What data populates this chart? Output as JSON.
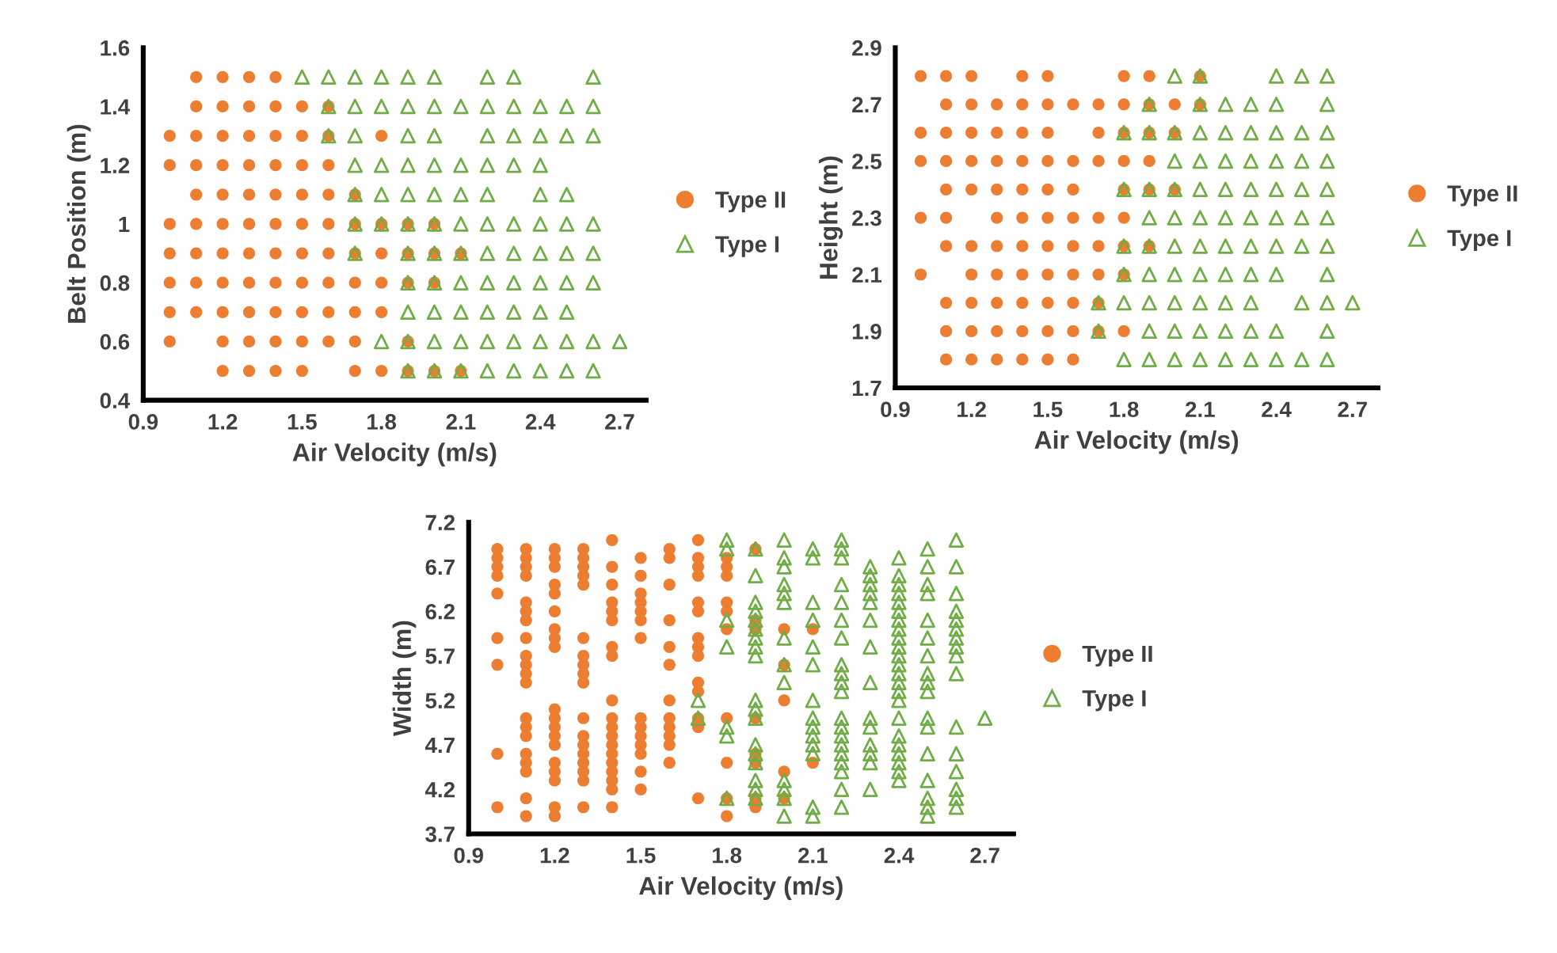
{
  "chart_data": [
    {
      "type": "scatter",
      "xlabel": "Air Velocity (m/s)",
      "ylabel": "Belt Position (m)",
      "xlim": [
        0.9,
        2.8
      ],
      "xticks": [
        0.9,
        1.2,
        1.5,
        1.8,
        2.1,
        2.4,
        2.7
      ],
      "ylim": [
        0.4,
        1.6
      ],
      "yticks": [
        0.4,
        0.6,
        0.8,
        {
          "value": 1.0,
          "label": "1"
        },
        1.2,
        1.4,
        1.6
      ],
      "legend": "right",
      "grid": false,
      "series": [
        {
          "name": "Type II",
          "color": "#ed7d31",
          "marker": "circle",
          "x": [
            1.1,
            1.2,
            1.3,
            1.4,
            1.1,
            1.2,
            1.3,
            1.4,
            1.5,
            1.6,
            1.0,
            1.1,
            1.2,
            1.3,
            1.4,
            1.5,
            1.6,
            1.8,
            1.0,
            1.1,
            1.2,
            1.3,
            1.4,
            1.5,
            1.6,
            1.1,
            1.2,
            1.3,
            1.4,
            1.5,
            1.6,
            1.7,
            1.0,
            1.1,
            1.2,
            1.3,
            1.4,
            1.5,
            1.6,
            1.7,
            1.8,
            1.9,
            2.0,
            1.0,
            1.1,
            1.2,
            1.3,
            1.4,
            1.5,
            1.6,
            1.7,
            1.8,
            1.9,
            2.0,
            2.1,
            1.0,
            1.1,
            1.2,
            1.3,
            1.4,
            1.5,
            1.6,
            1.7,
            1.8,
            1.9,
            2.0,
            1.0,
            1.1,
            1.2,
            1.3,
            1.4,
            1.5,
            1.6,
            1.7,
            1.8,
            1.0,
            1.2,
            1.3,
            1.4,
            1.5,
            1.6,
            1.7,
            1.9,
            1.2,
            1.3,
            1.4,
            1.5,
            1.7,
            1.8,
            1.9,
            2.0,
            2.1
          ],
          "values": [
            1.5,
            1.5,
            1.5,
            1.5,
            1.4,
            1.4,
            1.4,
            1.4,
            1.4,
            1.4,
            1.3,
            1.3,
            1.3,
            1.3,
            1.3,
            1.3,
            1.3,
            1.3,
            1.2,
            1.2,
            1.2,
            1.2,
            1.2,
            1.2,
            1.2,
            1.1,
            1.1,
            1.1,
            1.1,
            1.1,
            1.1,
            1.1,
            1.0,
            1.0,
            1.0,
            1.0,
            1.0,
            1.0,
            1.0,
            1.0,
            1.0,
            1.0,
            1.0,
            0.9,
            0.9,
            0.9,
            0.9,
            0.9,
            0.9,
            0.9,
            0.9,
            0.9,
            0.9,
            0.9,
            0.9,
            0.8,
            0.8,
            0.8,
            0.8,
            0.8,
            0.8,
            0.8,
            0.8,
            0.8,
            0.8,
            0.8,
            0.7,
            0.7,
            0.7,
            0.7,
            0.7,
            0.7,
            0.7,
            0.7,
            0.7,
            0.6,
            0.6,
            0.6,
            0.6,
            0.6,
            0.6,
            0.6,
            0.6,
            0.5,
            0.5,
            0.5,
            0.5,
            0.5,
            0.5,
            0.5,
            0.5,
            0.5
          ]
        },
        {
          "name": "Type I",
          "color": "#70ad47",
          "marker": "triangle",
          "x": [
            1.5,
            1.6,
            1.7,
            1.8,
            1.9,
            2.0,
            2.2,
            2.3,
            2.6,
            1.6,
            1.7,
            1.8,
            1.9,
            2.0,
            2.1,
            2.2,
            2.3,
            2.4,
            2.5,
            2.6,
            1.6,
            1.7,
            1.9,
            2.0,
            2.2,
            2.3,
            2.4,
            2.5,
            2.6,
            1.7,
            1.8,
            1.9,
            2.0,
            2.1,
            2.2,
            2.3,
            2.4,
            1.7,
            1.8,
            1.9,
            2.0,
            2.1,
            2.2,
            2.4,
            2.5,
            1.7,
            1.8,
            1.9,
            2.0,
            2.1,
            2.2,
            2.3,
            2.4,
            2.5,
            2.6,
            1.7,
            1.9,
            2.0,
            2.1,
            2.2,
            2.3,
            2.4,
            2.5,
            2.6,
            1.9,
            2.0,
            2.1,
            2.2,
            2.3,
            2.4,
            2.5,
            2.6,
            1.9,
            2.0,
            2.1,
            2.2,
            2.3,
            2.4,
            2.5,
            1.8,
            1.9,
            2.0,
            2.1,
            2.2,
            2.3,
            2.4,
            2.5,
            2.6,
            2.7,
            1.9,
            2.0,
            2.1,
            2.2,
            2.3,
            2.4,
            2.5,
            2.6
          ],
          "values": [
            1.5,
            1.5,
            1.5,
            1.5,
            1.5,
            1.5,
            1.5,
            1.5,
            1.5,
            1.4,
            1.4,
            1.4,
            1.4,
            1.4,
            1.4,
            1.4,
            1.4,
            1.4,
            1.4,
            1.4,
            1.3,
            1.3,
            1.3,
            1.3,
            1.3,
            1.3,
            1.3,
            1.3,
            1.3,
            1.2,
            1.2,
            1.2,
            1.2,
            1.2,
            1.2,
            1.2,
            1.2,
            1.1,
            1.1,
            1.1,
            1.1,
            1.1,
            1.1,
            1.1,
            1.1,
            1.0,
            1.0,
            1.0,
            1.0,
            1.0,
            1.0,
            1.0,
            1.0,
            1.0,
            1.0,
            0.9,
            0.9,
            0.9,
            0.9,
            0.9,
            0.9,
            0.9,
            0.9,
            0.9,
            0.8,
            0.8,
            0.8,
            0.8,
            0.8,
            0.8,
            0.8,
            0.8,
            0.7,
            0.7,
            0.7,
            0.7,
            0.7,
            0.7,
            0.7,
            0.6,
            0.6,
            0.6,
            0.6,
            0.6,
            0.6,
            0.6,
            0.6,
            0.6,
            0.6,
            0.5,
            0.5,
            0.5,
            0.5,
            0.5,
            0.5,
            0.5,
            0.5
          ]
        }
      ]
    },
    {
      "type": "scatter",
      "xlabel": "Air Velocity (m/s)",
      "ylabel": "Height (m)",
      "xlim": [
        0.9,
        2.8
      ],
      "xticks": [
        0.9,
        1.2,
        1.5,
        1.8,
        2.1,
        2.4,
        2.7
      ],
      "ylim": [
        1.7,
        2.9
      ],
      "yticks": [
        1.7,
        1.9,
        2.1,
        2.3,
        2.5,
        2.7,
        2.9
      ],
      "legend": "right",
      "grid": false,
      "series": [
        {
          "name": "Type II",
          "color": "#ed7d31",
          "marker": "circle",
          "x": [
            1.0,
            1.1,
            1.2,
            1.4,
            1.5,
            1.8,
            1.9,
            2.1,
            1.1,
            1.2,
            1.3,
            1.4,
            1.5,
            1.6,
            1.7,
            1.8,
            1.9,
            2.0,
            2.1,
            1.0,
            1.1,
            1.2,
            1.3,
            1.4,
            1.5,
            1.7,
            1.8,
            1.9,
            2.0,
            1.0,
            1.1,
            1.2,
            1.3,
            1.4,
            1.5,
            1.6,
            1.7,
            1.8,
            1.9,
            1.1,
            1.2,
            1.3,
            1.4,
            1.5,
            1.6,
            1.8,
            1.9,
            2.0,
            1.0,
            1.1,
            1.3,
            1.4,
            1.5,
            1.6,
            1.7,
            1.8,
            1.1,
            1.2,
            1.3,
            1.4,
            1.5,
            1.6,
            1.7,
            1.8,
            1.9,
            1.0,
            1.2,
            1.3,
            1.4,
            1.5,
            1.6,
            1.7,
            1.8,
            1.1,
            1.2,
            1.3,
            1.4,
            1.5,
            1.6,
            1.7,
            1.1,
            1.2,
            1.3,
            1.4,
            1.5,
            1.6,
            1.7,
            1.8,
            1.1,
            1.2,
            1.3,
            1.4,
            1.5,
            1.6
          ],
          "values": [
            2.8,
            2.8,
            2.8,
            2.8,
            2.8,
            2.8,
            2.8,
            2.8,
            2.7,
            2.7,
            2.7,
            2.7,
            2.7,
            2.7,
            2.7,
            2.7,
            2.7,
            2.7,
            2.7,
            2.6,
            2.6,
            2.6,
            2.6,
            2.6,
            2.6,
            2.6,
            2.6,
            2.6,
            2.6,
            2.5,
            2.5,
            2.5,
            2.5,
            2.5,
            2.5,
            2.5,
            2.5,
            2.5,
            2.5,
            2.4,
            2.4,
            2.4,
            2.4,
            2.4,
            2.4,
            2.4,
            2.4,
            2.4,
            2.3,
            2.3,
            2.3,
            2.3,
            2.3,
            2.3,
            2.3,
            2.3,
            2.2,
            2.2,
            2.2,
            2.2,
            2.2,
            2.2,
            2.2,
            2.2,
            2.2,
            2.1,
            2.1,
            2.1,
            2.1,
            2.1,
            2.1,
            2.1,
            2.1,
            2.0,
            2.0,
            2.0,
            2.0,
            2.0,
            2.0,
            2.0,
            1.9,
            1.9,
            1.9,
            1.9,
            1.9,
            1.9,
            1.9,
            1.9,
            1.8,
            1.8,
            1.8,
            1.8,
            1.8,
            1.8
          ]
        },
        {
          "name": "Type I",
          "color": "#70ad47",
          "marker": "triangle",
          "x": [
            2.0,
            2.1,
            2.4,
            2.5,
            2.6,
            1.9,
            2.1,
            2.2,
            2.3,
            2.4,
            2.6,
            1.8,
            1.9,
            2.0,
            2.1,
            2.2,
            2.3,
            2.4,
            2.5,
            2.6,
            2.0,
            2.1,
            2.2,
            2.3,
            2.4,
            2.5,
            2.6,
            1.8,
            1.9,
            2.0,
            2.1,
            2.2,
            2.3,
            2.4,
            2.5,
            2.6,
            1.9,
            2.0,
            2.1,
            2.2,
            2.3,
            2.4,
            2.5,
            2.6,
            1.8,
            1.9,
            2.0,
            2.1,
            2.2,
            2.3,
            2.4,
            2.5,
            2.6,
            1.8,
            1.9,
            2.0,
            2.1,
            2.2,
            2.3,
            2.4,
            2.6,
            1.7,
            1.8,
            1.9,
            2.0,
            2.1,
            2.2,
            2.3,
            2.5,
            2.6,
            2.7,
            1.7,
            1.9,
            2.0,
            2.1,
            2.2,
            2.3,
            2.4,
            2.6,
            1.8,
            1.9,
            2.0,
            2.1,
            2.2,
            2.3,
            2.4,
            2.5,
            2.6
          ],
          "values": [
            2.8,
            2.8,
            2.8,
            2.8,
            2.8,
            2.7,
            2.7,
            2.7,
            2.7,
            2.7,
            2.7,
            2.6,
            2.6,
            2.6,
            2.6,
            2.6,
            2.6,
            2.6,
            2.6,
            2.6,
            2.5,
            2.5,
            2.5,
            2.5,
            2.5,
            2.5,
            2.5,
            2.4,
            2.4,
            2.4,
            2.4,
            2.4,
            2.4,
            2.4,
            2.4,
            2.4,
            2.3,
            2.3,
            2.3,
            2.3,
            2.3,
            2.3,
            2.3,
            2.3,
            2.2,
            2.2,
            2.2,
            2.2,
            2.2,
            2.2,
            2.2,
            2.2,
            2.2,
            2.1,
            2.1,
            2.1,
            2.1,
            2.1,
            2.1,
            2.1,
            2.1,
            2.0,
            2.0,
            2.0,
            2.0,
            2.0,
            2.0,
            2.0,
            2.0,
            2.0,
            2.0,
            1.9,
            1.9,
            1.9,
            1.9,
            1.9,
            1.9,
            1.9,
            1.9,
            1.8,
            1.8,
            1.8,
            1.8,
            1.8,
            1.8,
            1.8,
            1.8,
            1.8
          ]
        }
      ]
    },
    {
      "type": "scatter",
      "xlabel": "Air Velocity (m/s)",
      "ylabel": "Width (m)",
      "xlim": [
        0.9,
        2.8
      ],
      "xticks": [
        0.9,
        1.2,
        1.5,
        1.8,
        2.1,
        2.4,
        2.7
      ],
      "ylim": [
        3.7,
        7.2
      ],
      "yticks": [
        3.7,
        4.2,
        4.7,
        5.2,
        5.7,
        6.2,
        6.7,
        7.2
      ],
      "legend": "right",
      "grid": false,
      "series": [
        {
          "name": "Type II",
          "color": "#ed7d31",
          "marker": "circle",
          "x": [
            1.0,
            1.0,
            1.0,
            1.0,
            1.0,
            1.0,
            1.0,
            1.0,
            1.0,
            1.1,
            1.1,
            1.1,
            1.1,
            1.1,
            1.1,
            1.1,
            1.1,
            1.1,
            1.1,
            1.1,
            1.1,
            1.1,
            1.1,
            1.1,
            1.1,
            1.1,
            1.1,
            1.1,
            1.1,
            1.2,
            1.2,
            1.2,
            1.2,
            1.2,
            1.2,
            1.2,
            1.2,
            1.2,
            1.2,
            1.2,
            1.2,
            1.2,
            1.2,
            1.2,
            1.2,
            1.2,
            1.2,
            1.2,
            1.3,
            1.3,
            1.3,
            1.3,
            1.3,
            1.3,
            1.3,
            1.3,
            1.3,
            1.3,
            1.3,
            1.3,
            1.3,
            1.3,
            1.3,
            1.3,
            1.3,
            1.3,
            1.4,
            1.4,
            1.4,
            1.4,
            1.4,
            1.4,
            1.4,
            1.4,
            1.4,
            1.4,
            1.4,
            1.4,
            1.4,
            1.4,
            1.4,
            1.4,
            1.4,
            1.4,
            1.4,
            1.5,
            1.5,
            1.5,
            1.5,
            1.5,
            1.5,
            1.5,
            1.5,
            1.5,
            1.5,
            1.5,
            1.5,
            1.5,
            1.5,
            1.6,
            1.6,
            1.6,
            1.6,
            1.6,
            1.6,
            1.6,
            1.6,
            1.6,
            1.6,
            1.6,
            1.6,
            1.7,
            1.7,
            1.7,
            1.7,
            1.7,
            1.7,
            1.7,
            1.7,
            1.7,
            1.7,
            1.7,
            1.7,
            1.7,
            1.7,
            1.8,
            1.8,
            1.8,
            1.8,
            1.8,
            1.8,
            1.8,
            1.8,
            1.8,
            1.8,
            1.9,
            1.9,
            1.9,
            1.9,
            1.9,
            1.9,
            1.9,
            1.9,
            2.0,
            2.0,
            2.0,
            2.0,
            2.0,
            2.1,
            2.1
          ],
          "values": [
            6.9,
            6.8,
            6.7,
            6.6,
            6.4,
            5.9,
            5.6,
            4.6,
            4.0,
            6.9,
            6.8,
            6.7,
            6.6,
            6.3,
            6.2,
            6.1,
            5.9,
            5.7,
            5.6,
            5.5,
            5.4,
            5.0,
            4.9,
            4.8,
            4.6,
            4.5,
            4.4,
            4.1,
            3.9,
            6.9,
            6.8,
            6.7,
            6.5,
            6.4,
            6.2,
            6.0,
            5.9,
            5.8,
            5.1,
            5.0,
            4.9,
            4.8,
            4.7,
            4.5,
            4.4,
            4.3,
            4.0,
            3.9,
            6.9,
            6.8,
            6.7,
            6.6,
            6.5,
            5.9,
            5.7,
            5.6,
            5.5,
            5.4,
            5.0,
            4.8,
            4.7,
            4.6,
            4.5,
            4.4,
            4.3,
            4.0,
            7.0,
            6.7,
            6.5,
            6.3,
            6.2,
            6.1,
            5.8,
            5.7,
            5.2,
            5.0,
            4.9,
            4.8,
            4.7,
            4.6,
            4.5,
            4.4,
            4.3,
            4.2,
            4.0,
            6.8,
            6.6,
            6.4,
            6.3,
            6.2,
            6.1,
            5.9,
            5.0,
            4.9,
            4.8,
            4.7,
            4.6,
            4.4,
            4.2,
            6.9,
            6.8,
            6.5,
            6.1,
            5.8,
            5.6,
            5.2,
            5.0,
            4.9,
            4.8,
            4.7,
            4.5,
            7.0,
            6.8,
            6.7,
            6.6,
            6.3,
            6.2,
            5.9,
            5.8,
            5.7,
            5.4,
            5.3,
            5.0,
            4.9,
            4.1,
            6.8,
            6.7,
            6.6,
            6.3,
            6.2,
            6.0,
            5.0,
            4.5,
            4.1,
            3.9,
            6.9,
            6.1,
            6.0,
            5.0,
            4.6,
            4.5,
            4.1,
            4.0,
            6.0,
            5.6,
            5.2,
            4.4,
            4.1,
            6.0,
            4.5
          ]
        },
        {
          "name": "Type I",
          "color": "#70ad47",
          "marker": "triangle",
          "x": [
            1.7,
            1.7,
            1.8,
            1.8,
            1.8,
            1.8,
            1.8,
            1.8,
            1.8,
            1.9,
            1.9,
            1.9,
            1.9,
            1.9,
            1.9,
            1.9,
            1.9,
            1.9,
            1.9,
            1.9,
            1.9,
            1.9,
            1.9,
            1.9,
            1.9,
            1.9,
            1.9,
            2.0,
            2.0,
            2.0,
            2.0,
            2.0,
            2.0,
            2.0,
            2.0,
            2.0,
            2.0,
            2.0,
            2.0,
            2.0,
            2.1,
            2.1,
            2.1,
            2.1,
            2.1,
            2.1,
            2.1,
            2.1,
            2.1,
            2.1,
            2.1,
            2.1,
            2.1,
            2.1,
            2.2,
            2.2,
            2.2,
            2.2,
            2.2,
            2.2,
            2.2,
            2.2,
            2.2,
            2.2,
            2.2,
            2.2,
            2.2,
            2.2,
            2.2,
            2.2,
            2.2,
            2.2,
            2.2,
            2.2,
            2.3,
            2.3,
            2.3,
            2.3,
            2.3,
            2.3,
            2.3,
            2.3,
            2.3,
            2.3,
            2.3,
            2.3,
            2.3,
            2.3,
            2.4,
            2.4,
            2.4,
            2.4,
            2.4,
            2.4,
            2.4,
            2.4,
            2.4,
            2.4,
            2.4,
            2.4,
            2.4,
            2.4,
            2.4,
            2.4,
            2.4,
            2.4,
            2.4,
            2.4,
            2.4,
            2.4,
            2.4,
            2.5,
            2.5,
            2.5,
            2.5,
            2.5,
            2.5,
            2.5,
            2.5,
            2.5,
            2.5,
            2.5,
            2.5,
            2.5,
            2.5,
            2.5,
            2.5,
            2.5,
            2.6,
            2.6,
            2.6,
            2.6,
            2.6,
            2.6,
            2.6,
            2.6,
            2.6,
            2.6,
            2.6,
            2.6,
            2.6,
            2.6,
            2.6,
            2.6,
            2.7
          ],
          "values": [
            5.2,
            5.0,
            7.0,
            6.9,
            6.1,
            5.8,
            4.9,
            4.8,
            4.1,
            6.9,
            6.6,
            6.3,
            6.2,
            6.1,
            6.0,
            5.9,
            5.8,
            5.7,
            5.2,
            5.1,
            5.0,
            4.7,
            4.6,
            4.5,
            4.3,
            4.2,
            4.1,
            7.0,
            6.8,
            6.7,
            6.5,
            6.4,
            6.3,
            5.9,
            5.6,
            5.4,
            4.3,
            4.2,
            4.1,
            3.9,
            6.9,
            6.8,
            6.3,
            6.1,
            5.8,
            5.6,
            5.2,
            5.0,
            4.9,
            4.8,
            4.7,
            4.6,
            4.0,
            3.9,
            7.0,
            6.9,
            6.8,
            6.5,
            6.3,
            6.1,
            5.9,
            5.6,
            5.5,
            5.4,
            5.3,
            5.0,
            4.9,
            4.8,
            4.7,
            4.6,
            4.5,
            4.4,
            4.2,
            4.0,
            6.7,
            6.6,
            6.5,
            6.4,
            6.3,
            6.1,
            5.8,
            5.4,
            5.0,
            4.9,
            4.7,
            4.6,
            4.5,
            4.2,
            6.8,
            6.6,
            6.5,
            6.4,
            6.3,
            6.2,
            6.1,
            6.0,
            5.9,
            5.8,
            5.7,
            5.6,
            5.5,
            5.4,
            5.3,
            5.2,
            5.0,
            4.8,
            4.7,
            4.6,
            4.5,
            4.4,
            4.3,
            6.9,
            6.7,
            6.5,
            6.4,
            6.1,
            5.9,
            5.7,
            5.5,
            5.4,
            5.3,
            5.0,
            4.9,
            4.6,
            4.3,
            4.1,
            4.0,
            3.9,
            7.0,
            6.7,
            6.4,
            6.2,
            6.1,
            6.0,
            5.9,
            5.8,
            5.7,
            5.5,
            4.9,
            4.6,
            4.4,
            4.2,
            4.1,
            4.0,
            5.0
          ]
        }
      ]
    }
  ]
}
